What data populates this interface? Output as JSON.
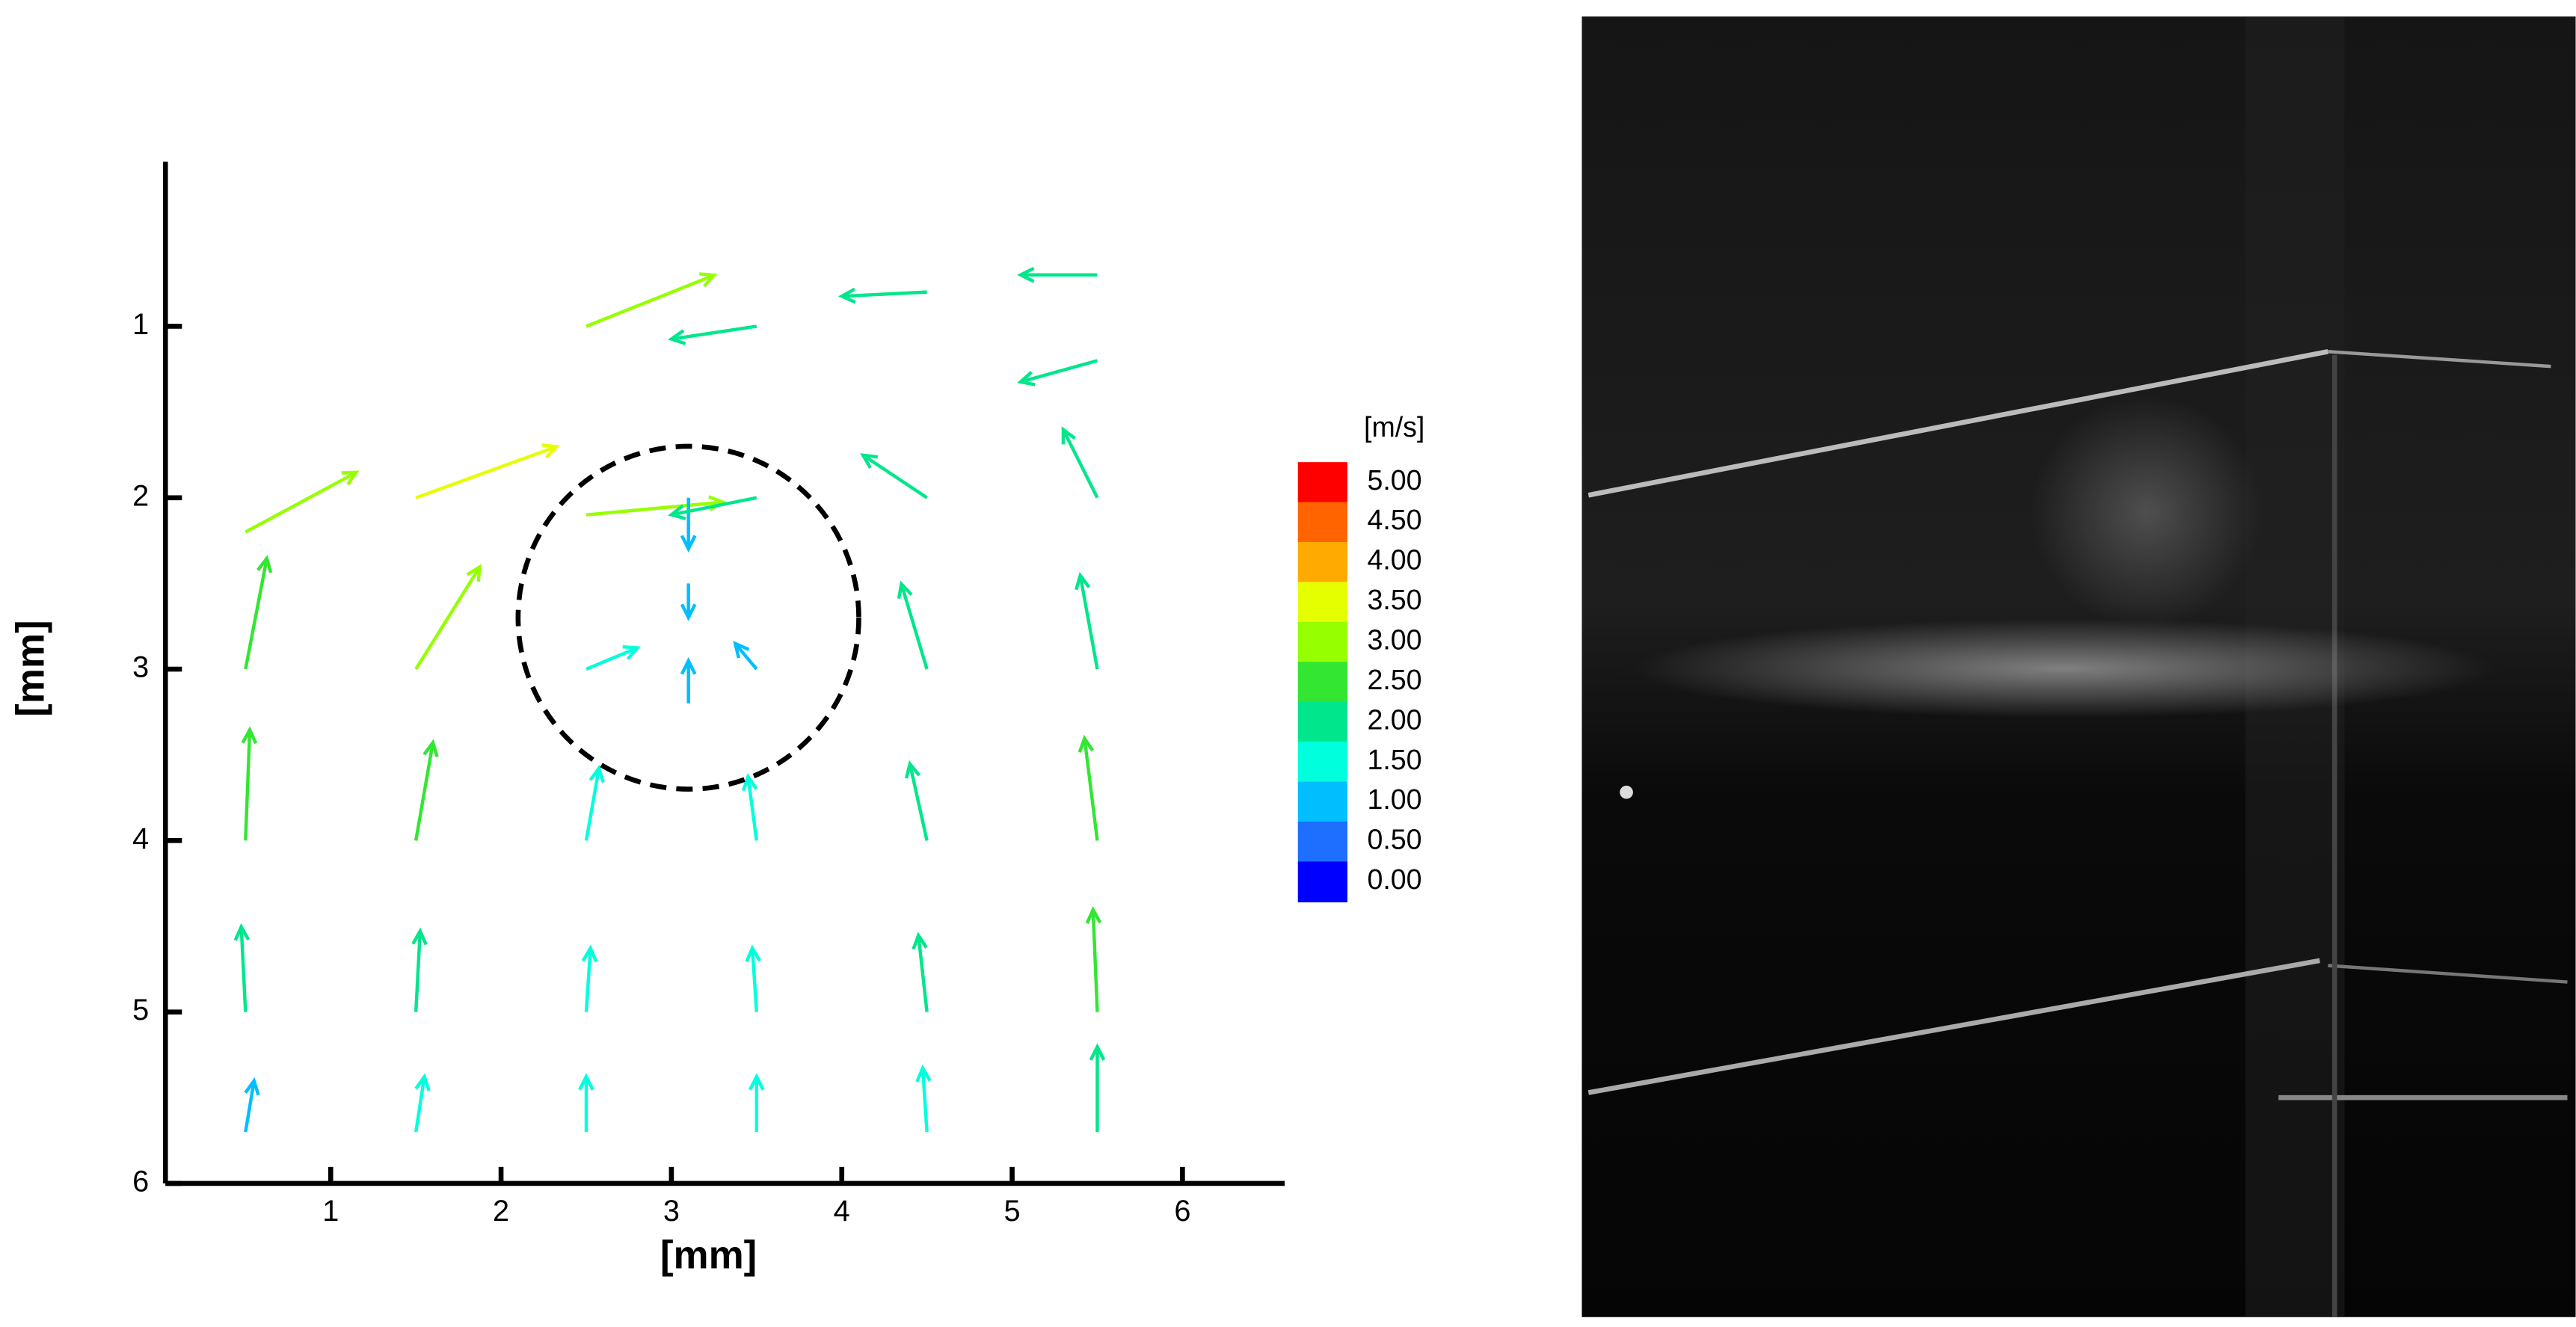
{
  "chart_data": {
    "type": "quiver",
    "xlabel": "[mm]",
    "ylabel": "[mm]",
    "xlim": [
      0.03,
      6.6
    ],
    "ylim": [
      0.04,
      6
    ],
    "y_inverted": true,
    "xticks": [
      1,
      2,
      3,
      4,
      5,
      6
    ],
    "yticks": [
      1,
      2,
      3,
      4,
      5,
      6
    ],
    "x": [
      2.5,
      3.5,
      4.5,
      5.5,
      5.5,
      0.5,
      1.5,
      2.5,
      3.1,
      3.5,
      4.5,
      5.5,
      3.1,
      0.5,
      1.5,
      2.5,
      3.1,
      3.5,
      4.5,
      5.5,
      0.5,
      1.5,
      2.5,
      3.5,
      4.5,
      5.5,
      0.5,
      1.5,
      2.5,
      3.5,
      4.5,
      5.5,
      0.5,
      1.5,
      2.5,
      3.5,
      4.5,
      5.5
    ],
    "y": [
      1.0,
      1.0,
      0.8,
      0.7,
      1.2,
      2.2,
      2.0,
      2.1,
      2.0,
      2.0,
      2.0,
      2.0,
      2.5,
      3.0,
      3.0,
      3.0,
      3.2,
      3.0,
      3.0,
      3.0,
      4.0,
      4.0,
      4.0,
      4.0,
      4.0,
      4.0,
      5.0,
      5.0,
      5.0,
      5.0,
      5.0,
      5.0,
      5.7,
      5.7,
      5.7,
      5.7,
      5.7,
      5.7
    ],
    "u": [
      3.0,
      -2.0,
      -2.0,
      -1.8,
      -1.8,
      2.6,
      3.3,
      3.2,
      0.0,
      -2.0,
      -1.5,
      -0.8,
      0.0,
      0.5,
      1.5,
      1.2,
      0.0,
      -0.5,
      -0.6,
      -0.4,
      0.1,
      0.4,
      0.3,
      -0.2,
      -0.4,
      -0.3,
      -0.1,
      0.1,
      0.1,
      -0.1,
      -0.2,
      -0.1,
      0.2,
      0.2,
      0.0,
      0.0,
      -0.1,
      0.0
    ],
    "v": [
      -1.2,
      0.3,
      0.1,
      0.0,
      0.5,
      -1.4,
      -1.2,
      -0.3,
      1.2,
      0.4,
      -1.0,
      -1.6,
      0.8,
      -2.6,
      -2.4,
      -0.5,
      -1.0,
      -0.6,
      -2.0,
      -2.2,
      -2.6,
      -2.3,
      -1.7,
      -1.5,
      -1.8,
      -2.4,
      -2.0,
      -1.9,
      -1.5,
      -1.5,
      -1.8,
      -2.4,
      -1.2,
      -1.3,
      -1.3,
      -1.3,
      -1.5,
      -2.0
    ],
    "circle": {
      "cx": 3.1,
      "cy": 2.7,
      "r": 1.0
    },
    "colorbar": {
      "title": "[m/s]",
      "ticks": [
        {
          "value": 5,
          "label": "5.00"
        },
        {
          "value": 4.5,
          "label": "4.50"
        },
        {
          "value": 4,
          "label": "4.00"
        },
        {
          "value": 3.5,
          "label": "3.50"
        },
        {
          "value": 3,
          "label": "3.00"
        },
        {
          "value": 2.5,
          "label": "2.50"
        },
        {
          "value": 2,
          "label": "2.00"
        },
        {
          "value": 1.5,
          "label": "1.50"
        },
        {
          "value": 1,
          "label": "1.00"
        },
        {
          "value": 0.5,
          "label": "0.50"
        },
        {
          "value": 0,
          "label": "0.00"
        }
      ],
      "colors": [
        "#ff0000",
        "#ff6400",
        "#ffaa00",
        "#e6ff00",
        "#96ff00",
        "#32e632",
        "#00e68c",
        "#00ffdc",
        "#00beff",
        "#1e6eff",
        "#0000ff"
      ]
    }
  }
}
